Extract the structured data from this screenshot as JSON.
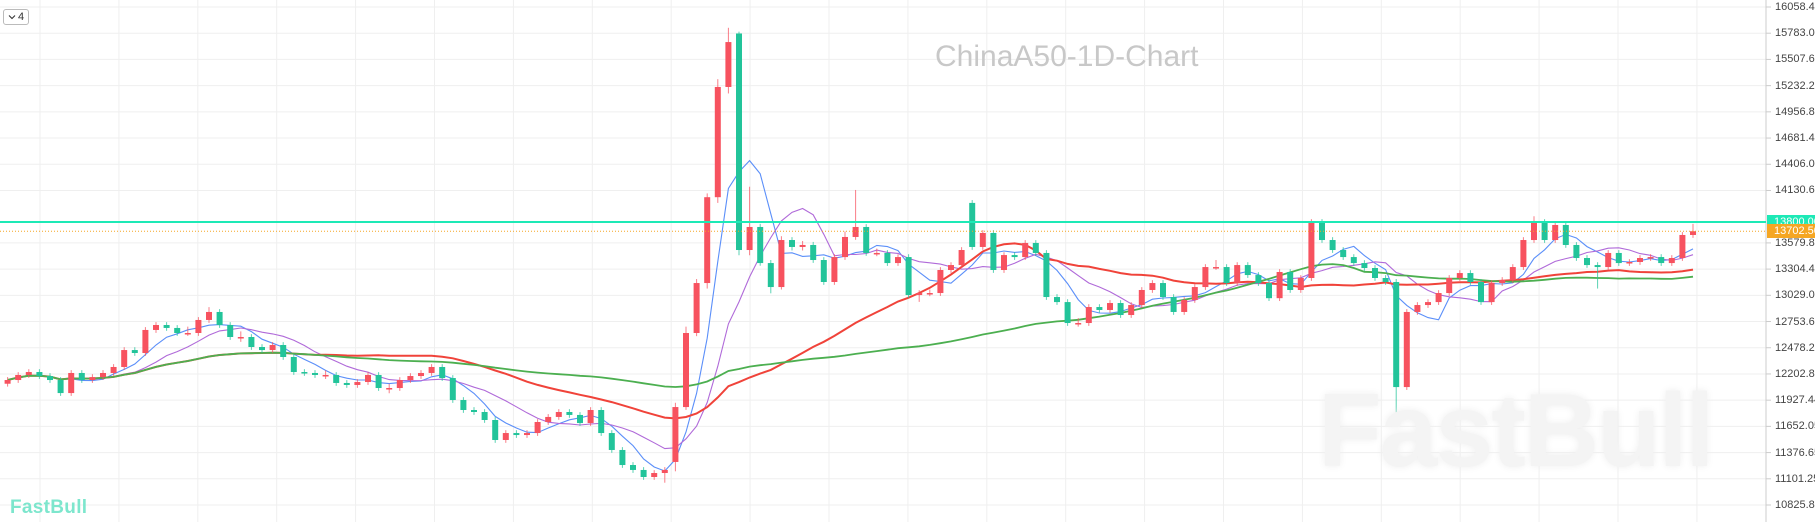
{
  "toolbar": {
    "interval_toggle_icon": "chevron-down-icon",
    "interval_value": "4"
  },
  "branding": {
    "logo_text": "FastBull",
    "watermark_text": "FastBull"
  },
  "chart_data": {
    "type": "candlestick",
    "title": "ChinaA50-1D-Chart",
    "colors": {
      "up": "#f7525f",
      "down": "#22c49a",
      "horizontal_line": "#1de9b6",
      "last_price": "#f5a623",
      "ma_fast": "#5b8ff9",
      "ma_mid": "#b06ad9",
      "ma_slow": "#f0433a",
      "ma_long": "#4caf50"
    },
    "y_ticks": [
      "16058.41",
      "15783.01",
      "15507.61",
      "15232.22",
      "14956.82",
      "14681.42",
      "14406.02",
      "14130.63",
      "13579.83",
      "13304.43",
      "13029.03",
      "12753.64",
      "12478.24",
      "12202.84",
      "11927.44",
      "11652.05",
      "11376.65",
      "11101.25",
      "10825.85"
    ],
    "ylim": [
      10825.85,
      16058.41
    ],
    "grid": true,
    "horizontal_line": {
      "price": 13800.0,
      "label": "13800.00"
    },
    "last_price": {
      "price": 13702.5,
      "label": "13702.50"
    },
    "moving_average_periods": [
      5,
      10,
      30,
      60
    ],
    "candles_ohlc": [
      [
        12100,
        12170,
        12070,
        12139
      ],
      [
        12139,
        12222,
        12109,
        12192
      ],
      [
        12192,
        12253,
        12162,
        12223
      ],
      [
        12223,
        12253,
        12151,
        12181
      ],
      [
        12181,
        12211,
        12109,
        12139
      ],
      [
        12139,
        12169,
        11972,
        12002
      ],
      [
        12002,
        12243,
        11972,
        12213
      ],
      [
        12213,
        12243,
        12109,
        12139
      ],
      [
        12139,
        12200,
        12109,
        12170
      ],
      [
        12170,
        12243,
        12140,
        12213
      ],
      [
        12213,
        12306,
        12183,
        12276
      ],
      [
        12276,
        12484,
        12246,
        12454
      ],
      [
        12454,
        12484,
        12393,
        12423
      ],
      [
        12423,
        12695,
        12393,
        12665
      ],
      [
        12665,
        12747,
        12635,
        12717
      ],
      [
        12717,
        12747,
        12656,
        12686
      ],
      [
        12686,
        12716,
        12603,
        12633
      ],
      [
        12633,
        12700,
        12603,
        12633
      ],
      [
        12633,
        12800,
        12603,
        12770
      ],
      [
        12770,
        12905,
        12740,
        12854
      ],
      [
        12854,
        12884,
        12687,
        12717
      ],
      [
        12717,
        12747,
        12561,
        12591
      ],
      [
        12591,
        12650,
        12540,
        12591
      ],
      [
        12591,
        12621,
        12456,
        12486
      ],
      [
        12486,
        12516,
        12424,
        12454
      ],
      [
        12454,
        12537,
        12424,
        12507
      ],
      [
        12507,
        12537,
        12351,
        12381
      ],
      [
        12381,
        12411,
        12193,
        12223
      ],
      [
        12223,
        12253,
        12183,
        12213
      ],
      [
        12213,
        12243,
        12162,
        12192
      ],
      [
        12192,
        12240,
        12150,
        12192
      ],
      [
        12192,
        12222,
        12078,
        12108
      ],
      [
        12108,
        12138,
        12057,
        12087
      ],
      [
        12087,
        12148,
        12057,
        12118
      ],
      [
        12118,
        12222,
        12088,
        12192
      ],
      [
        12192,
        12222,
        12025,
        12055
      ],
      [
        12055,
        12100,
        12000,
        12055
      ],
      [
        12055,
        12169,
        12025,
        12139
      ],
      [
        12139,
        12211,
        12109,
        12181
      ],
      [
        12181,
        12243,
        12151,
        12213
      ],
      [
        12213,
        12306,
        12183,
        12276
      ],
      [
        12276,
        12306,
        12130,
        12160
      ],
      [
        12160,
        12190,
        11899,
        11929
      ],
      [
        11929,
        11959,
        11794,
        11824
      ],
      [
        11824,
        11854,
        11773,
        11803
      ],
      [
        11803,
        11833,
        11689,
        11719
      ],
      [
        11719,
        11749,
        11479,
        11509
      ],
      [
        11509,
        11612,
        11479,
        11582
      ],
      [
        11582,
        11612,
        11531,
        11561
      ],
      [
        11561,
        11612,
        11531,
        11582
      ],
      [
        11582,
        11728,
        11552,
        11698
      ],
      [
        11698,
        11781,
        11668,
        11751
      ],
      [
        11751,
        11833,
        11721,
        11803
      ],
      [
        11803,
        11833,
        11742,
        11772
      ],
      [
        11772,
        11802,
        11657,
        11687
      ],
      [
        11687,
        11854,
        11657,
        11824
      ],
      [
        11824,
        11854,
        11552,
        11582
      ],
      [
        11582,
        11612,
        11374,
        11404
      ],
      [
        11404,
        11434,
        11216,
        11246
      ],
      [
        11246,
        11276,
        11164,
        11194
      ],
      [
        11194,
        11224,
        11090,
        11120
      ],
      [
        11120,
        11192,
        11090,
        11162
      ],
      [
        11162,
        11224,
        11060,
        11194
      ],
      [
        11278,
        11900,
        11180,
        11855
      ],
      [
        11855,
        12700,
        11825,
        12633
      ],
      [
        12633,
        13200,
        12600,
        13158
      ],
      [
        13158,
        14100,
        13100,
        14060
      ],
      [
        14060,
        15300,
        14000,
        15218
      ],
      [
        15218,
        15840,
        15150,
        15690
      ],
      [
        15780,
        15800,
        13450,
        13505
      ],
      [
        13505,
        14170,
        13450,
        13747
      ],
      [
        13747,
        13780,
        13340,
        13368
      ],
      [
        13368,
        13400,
        13050,
        13116
      ],
      [
        13116,
        13650,
        13090,
        13610
      ],
      [
        13610,
        13640,
        13500,
        13537
      ],
      [
        13537,
        13600,
        13500,
        13558
      ],
      [
        13558,
        13590,
        13370,
        13400
      ],
      [
        13400,
        13430,
        13139,
        13169
      ],
      [
        13169,
        13461,
        13139,
        13431
      ],
      [
        13431,
        13700,
        13401,
        13642
      ],
      [
        13642,
        14136,
        13612,
        13747
      ],
      [
        13747,
        13777,
        13444,
        13474
      ],
      [
        13474,
        13520,
        13440,
        13474
      ],
      [
        13474,
        13504,
        13338,
        13368
      ],
      [
        13368,
        13461,
        13338,
        13431
      ],
      [
        13431,
        13461,
        13002,
        13032
      ],
      [
        13032,
        13083,
        12960,
        13053
      ],
      [
        13053,
        13090,
        13020,
        13053
      ],
      [
        13053,
        13325,
        13023,
        13295
      ],
      [
        13295,
        13377,
        13265,
        13347
      ],
      [
        13347,
        13535,
        13317,
        13505
      ],
      [
        14000,
        14030,
        13507,
        13537
      ],
      [
        13537,
        13714,
        13507,
        13684
      ],
      [
        13684,
        13714,
        13265,
        13295
      ],
      [
        13295,
        13482,
        13265,
        13452
      ],
      [
        13452,
        13482,
        13401,
        13431
      ],
      [
        13431,
        13609,
        13401,
        13579
      ],
      [
        13579,
        13609,
        13444,
        13474
      ],
      [
        13474,
        13504,
        12981,
        13011
      ],
      [
        13011,
        13041,
        12928,
        12958
      ],
      [
        12958,
        12988,
        12708,
        12738
      ],
      [
        12738,
        12790,
        12700,
        12738
      ],
      [
        12738,
        12936,
        12708,
        12906
      ],
      [
        12906,
        12936,
        12845,
        12875
      ],
      [
        12875,
        12978,
        12845,
        12948
      ],
      [
        12948,
        12978,
        12792,
        12822
      ],
      [
        12822,
        12957,
        12792,
        12927
      ],
      [
        12927,
        13115,
        12897,
        13085
      ],
      [
        13085,
        13188,
        13055,
        13158
      ],
      [
        13158,
        13188,
        12981,
        13011
      ],
      [
        13011,
        13041,
        12824,
        12854
      ],
      [
        12854,
        13010,
        12824,
        12980
      ],
      [
        12980,
        13146,
        12950,
        13116
      ],
      [
        13116,
        13356,
        13086,
        13326
      ],
      [
        13326,
        13400,
        13296,
        13326
      ],
      [
        13326,
        13356,
        13128,
        13158
      ],
      [
        13158,
        13377,
        13128,
        13347
      ],
      [
        13347,
        13377,
        13212,
        13242
      ],
      [
        13242,
        13272,
        13128,
        13158
      ],
      [
        13158,
        13188,
        12969,
        12999
      ],
      [
        12999,
        13304,
        12969,
        13274
      ],
      [
        13274,
        13304,
        13055,
        13085
      ],
      [
        13085,
        13241,
        13055,
        13211
      ],
      [
        13211,
        13829,
        13181,
        13799
      ],
      [
        13799,
        13829,
        13580,
        13610
      ],
      [
        13610,
        13640,
        13475,
        13505
      ],
      [
        13505,
        13535,
        13401,
        13431
      ],
      [
        13431,
        13461,
        13338,
        13368
      ],
      [
        13368,
        13398,
        13286,
        13316
      ],
      [
        13316,
        13346,
        13181,
        13211
      ],
      [
        13211,
        13241,
        13139,
        13169
      ],
      [
        13169,
        13200,
        11771,
        12065
      ],
      [
        12065,
        12884,
        12035,
        12854
      ],
      [
        12854,
        12957,
        12824,
        12927
      ],
      [
        12927,
        12988,
        12897,
        12958
      ],
      [
        12958,
        13083,
        12928,
        13053
      ],
      [
        13053,
        13241,
        13023,
        13211
      ],
      [
        13211,
        13293,
        13181,
        13263
      ],
      [
        13263,
        13293,
        13139,
        13169
      ],
      [
        13169,
        13199,
        12928,
        12958
      ],
      [
        12958,
        13188,
        12928,
        13158
      ],
      [
        13158,
        13220,
        13128,
        13190
      ],
      [
        13190,
        13356,
        13160,
        13326
      ],
      [
        13326,
        13640,
        13296,
        13610
      ],
      [
        13610,
        13860,
        13580,
        13799
      ],
      [
        13799,
        13829,
        13580,
        13610
      ],
      [
        13610,
        13798,
        13580,
        13768
      ],
      [
        13768,
        13798,
        13528,
        13558
      ],
      [
        13558,
        13588,
        13391,
        13421
      ],
      [
        13421,
        13451,
        13317,
        13347
      ],
      [
        13347,
        13377,
        13100,
        13326
      ],
      [
        13326,
        13504,
        13296,
        13474
      ],
      [
        13474,
        13504,
        13338,
        13368
      ],
      [
        13368,
        13409,
        13338,
        13379
      ],
      [
        13379,
        13451,
        13349,
        13421
      ],
      [
        13421,
        13461,
        13391,
        13431
      ],
      [
        13431,
        13461,
        13338,
        13368
      ],
      [
        13368,
        13451,
        13338,
        13421
      ],
      [
        13421,
        13693,
        13391,
        13663
      ],
      [
        13663,
        13780,
        13633,
        13702.5
      ]
    ]
  }
}
